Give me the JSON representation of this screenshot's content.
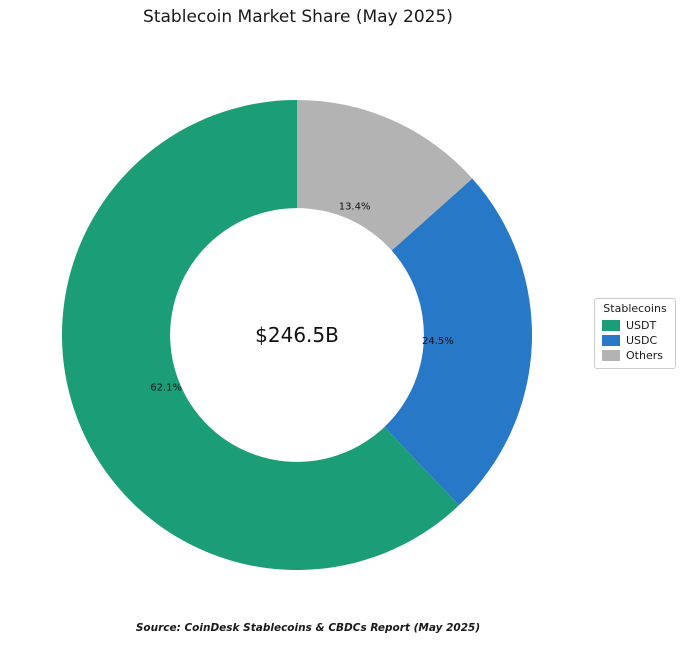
{
  "title": "Stablecoin Market Share (May 2025)",
  "center_label": "$246.5B",
  "source": "Source: CoinDesk Stablecoins & CBDCs Report (May 2025)",
  "legend": {
    "title": "Stablecoins",
    "entries": [
      "USDT",
      "USDC",
      "Others"
    ]
  },
  "chart_data": {
    "type": "pie",
    "subtype": "donut",
    "title": "Stablecoin Market Share (May 2025)",
    "categories": [
      "USDT",
      "USDC",
      "Others"
    ],
    "values": [
      62.1,
      24.5,
      13.4
    ],
    "labels": [
      "62.1%",
      "24.5%",
      "13.4%"
    ],
    "colors": [
      "#1b9e77",
      "#2878c8",
      "#b3b3b3"
    ],
    "center_text": "$246.5B",
    "start_angle": 90,
    "counterclockwise": true,
    "inner_radius_ratio": 0.54,
    "legend_title": "Stablecoins",
    "legend_position": "right",
    "source": "Source: CoinDesk Stablecoins & CBDCs Report (May 2025)"
  }
}
